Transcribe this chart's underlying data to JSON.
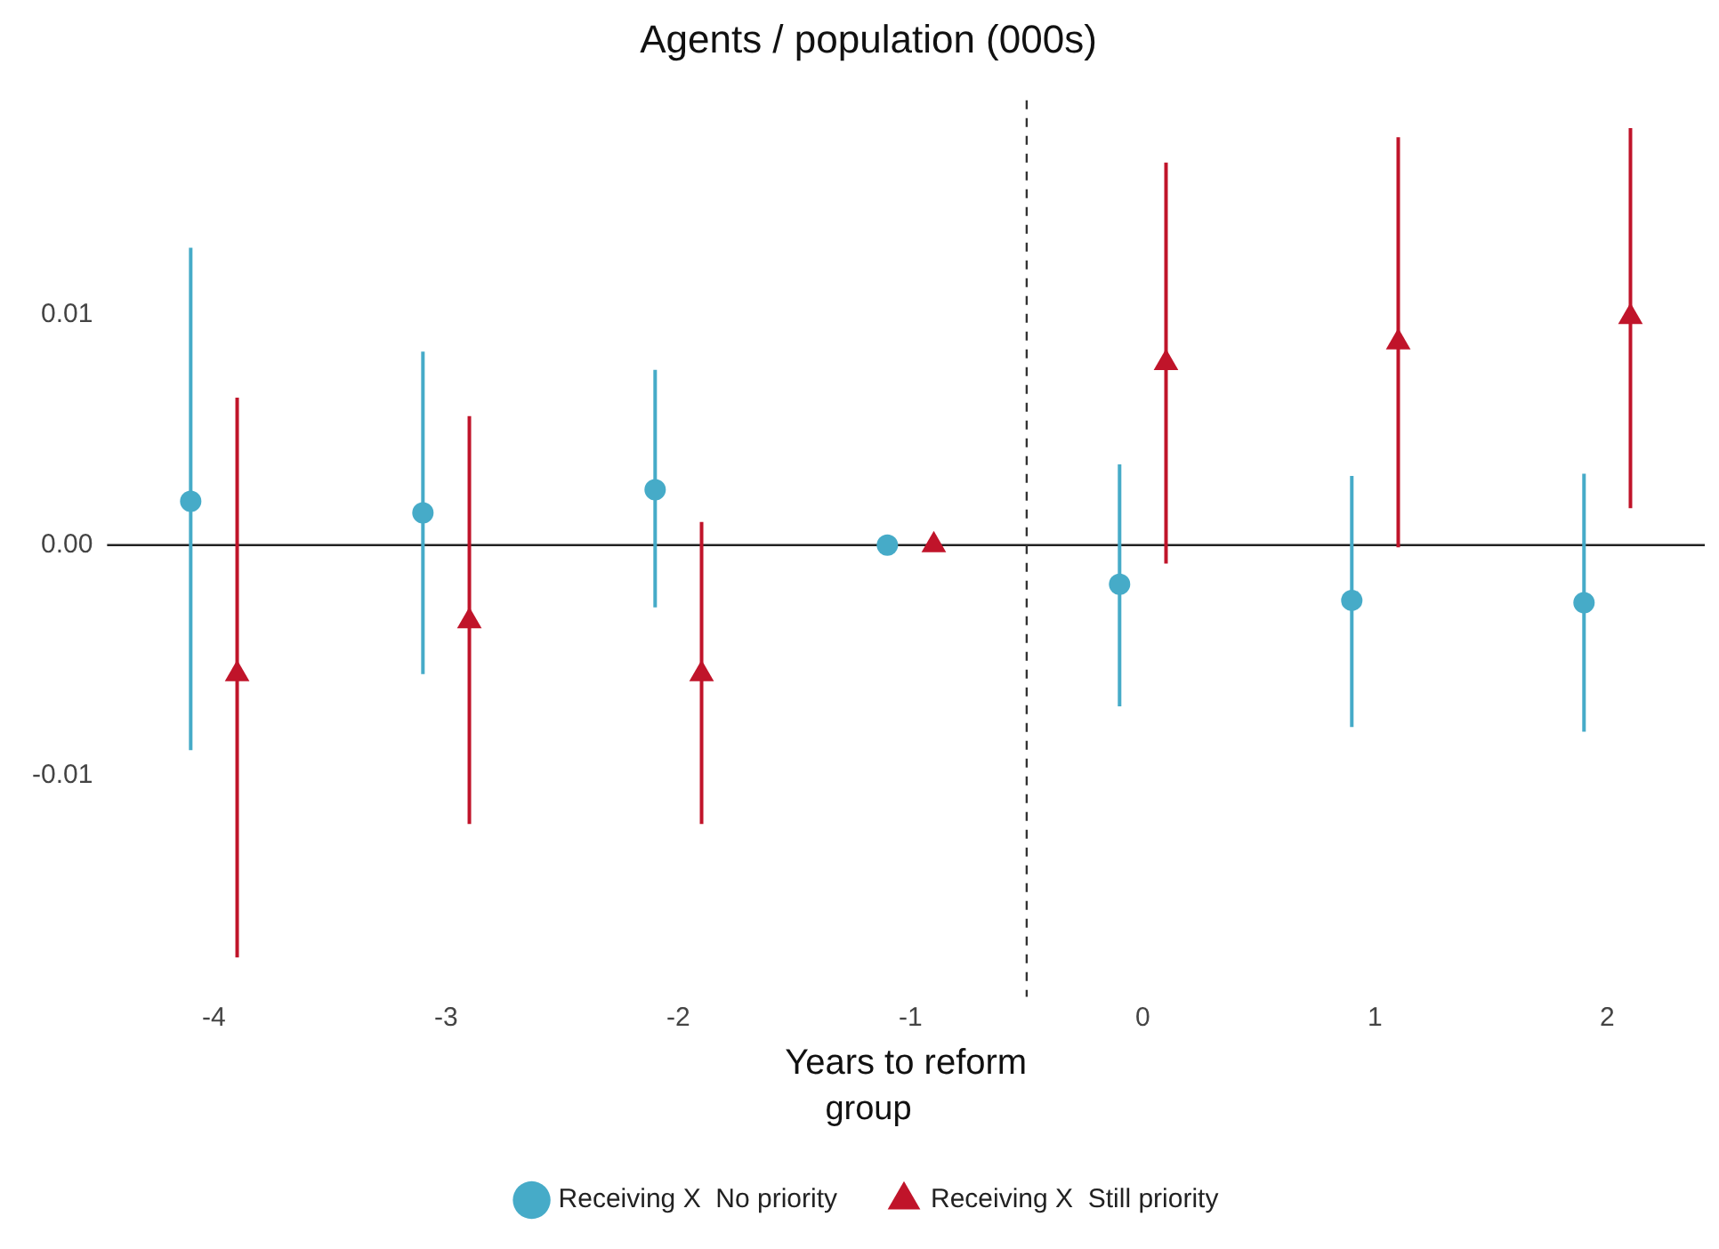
{
  "chart_data": {
    "type": "scatter",
    "title": "Agents / population (000s)",
    "xlabel": "Years to reform",
    "legend_title": "group",
    "legend": "bottom",
    "grid": false,
    "xlim": [
      -4.46,
      2.42
    ],
    "xticks": [
      -4,
      -3,
      -2,
      -1,
      0,
      1,
      2
    ],
    "ylim": [
      -0.0196,
      0.0193
    ],
    "yticks": [
      {
        "value": -0.01,
        "label": "-0.01"
      },
      {
        "value": 0,
        "label": "0.00"
      },
      {
        "value": 0.01,
        "label": "0.01"
      }
    ],
    "series": [
      {
        "name": "Receiving X  No priority",
        "color": "#46abc8",
        "marker": "circle",
        "x": [
          -4.1,
          -3.1,
          -2.1,
          -1.1,
          -0.1,
          0.9,
          1.9
        ],
        "values": [
          0.0019,
          0.0014,
          0.0024,
          0,
          -0.0017,
          -0.0024,
          -0.0025
        ],
        "errors": [
          [
            -0.0089,
            0.0129
          ],
          [
            -0.0056,
            0.0084
          ],
          [
            -0.0027,
            0.0076
          ],
          null,
          [
            -0.007,
            0.0035
          ],
          [
            -0.0079,
            0.003
          ],
          [
            -0.0081,
            0.0031
          ]
        ]
      },
      {
        "name": "Receiving X  Still priority",
        "color": "#c0142a",
        "marker": "triangle",
        "x": [
          -3.9,
          -2.9,
          -1.9,
          -0.9,
          0.1,
          1.1,
          2.1
        ],
        "values": [
          -0.0056,
          -0.0033,
          -0.0056,
          0,
          0.0079,
          0.0088,
          0.0099
        ],
        "errors": [
          [
            -0.0179,
            0.0064
          ],
          [
            -0.0121,
            0.0056
          ],
          [
            -0.0121,
            0.001
          ],
          null,
          [
            -0.0008,
            0.0166
          ],
          [
            -0.0001,
            0.0177
          ],
          [
            0.0016,
            0.0181
          ]
        ]
      }
    ],
    "ref_lines": [
      {
        "axis": "y",
        "value": 0,
        "color": "#222222",
        "line_style": "solid"
      },
      {
        "axis": "x",
        "value": -0.5,
        "color": "#333333",
        "line_style": "dashed"
      }
    ]
  }
}
